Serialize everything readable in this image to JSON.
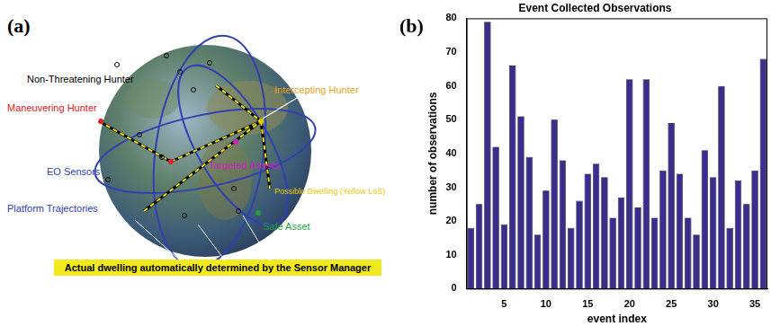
{
  "diagram": {
    "panel_labels": [
      "(a)",
      "(b)"
    ],
    "labels": [
      {
        "text": "Non-Threatening Hunter",
        "color": "#000000"
      },
      {
        "text": "Maneuvering Hunter",
        "color": "#e02020"
      },
      {
        "text": "Intercepting Hunter",
        "color": "#e8a317"
      },
      {
        "text": "Targeted Assets",
        "color": "#d020c0"
      },
      {
        "text": "EO Sensors",
        "color": "#3040b0"
      },
      {
        "text": "Possible Dwelling (Yellow LoS)",
        "color": "#e8c800"
      },
      {
        "text": "Platform Trajectories",
        "color": "#3040b0"
      },
      {
        "text": "Safe Asset",
        "color": "#20a040"
      }
    ],
    "banner": "Actual dwelling automatically determined by the Sensor Manager"
  },
  "chart_data": {
    "type": "bar",
    "title": "Event Collected Observations",
    "x_label": "event index",
    "y_label": "number of observations",
    "categories": [
      null,
      null,
      null,
      null,
      5,
      null,
      null,
      null,
      null,
      10,
      null,
      null,
      null,
      null,
      15,
      null,
      null,
      null,
      null,
      20,
      null,
      null,
      null,
      null,
      25,
      null,
      null,
      null,
      null,
      30,
      null,
      null,
      null,
      null,
      35,
      null
    ],
    "values": [
      18,
      25,
      79,
      42,
      19,
      66,
      51,
      39,
      16,
      29,
      50,
      38,
      18,
      26,
      34,
      37,
      33,
      21,
      27,
      62,
      24,
      62,
      21,
      35,
      49,
      34,
      21,
      16,
      41,
      33,
      60,
      18,
      32,
      25,
      35,
      68
    ],
    "color": "#3b2d8c",
    "ylim": [
      0,
      80
    ],
    "yticks": [
      0,
      10,
      20,
      30,
      40,
      50,
      60,
      70,
      80
    ],
    "grid": false
  }
}
